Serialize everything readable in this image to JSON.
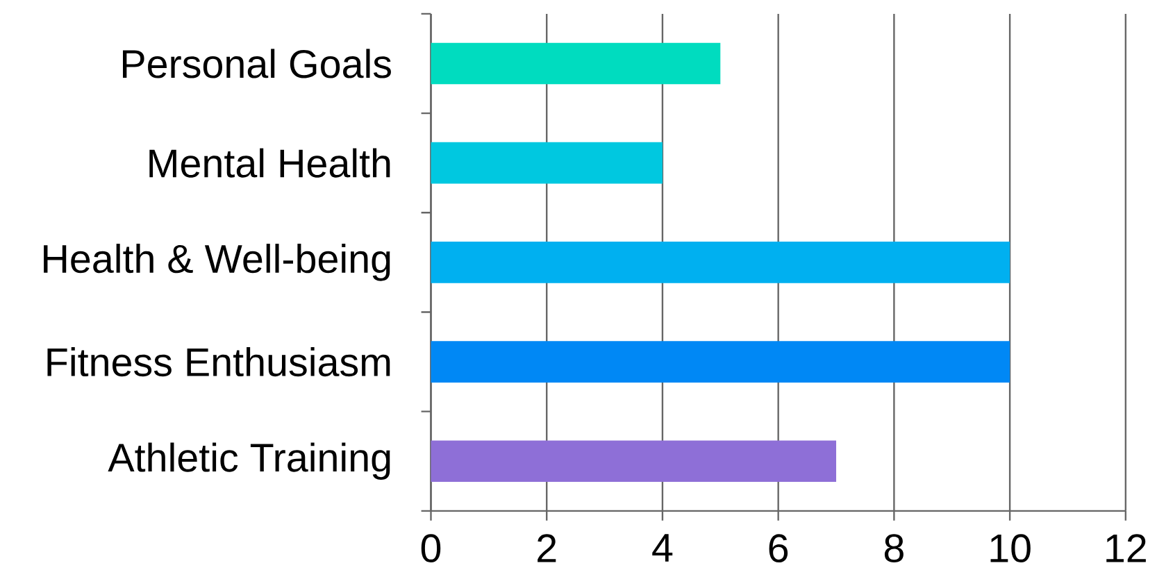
{
  "chart_data": {
    "type": "bar",
    "orientation": "horizontal",
    "categories": [
      "Personal Goals",
      "Mental Health",
      "Health & Well-being",
      "Fitness Enthusiasm",
      "Athletic Training"
    ],
    "values": [
      5,
      4,
      10,
      10,
      7
    ],
    "colors": [
      "#00dcbf",
      "#00c8e0",
      "#00b0f0",
      "#0088f5",
      "#8e6fd7"
    ],
    "xlim": [
      0,
      12
    ],
    "xticks": [
      0,
      2,
      4,
      6,
      8,
      10,
      12
    ],
    "grid": "x"
  }
}
